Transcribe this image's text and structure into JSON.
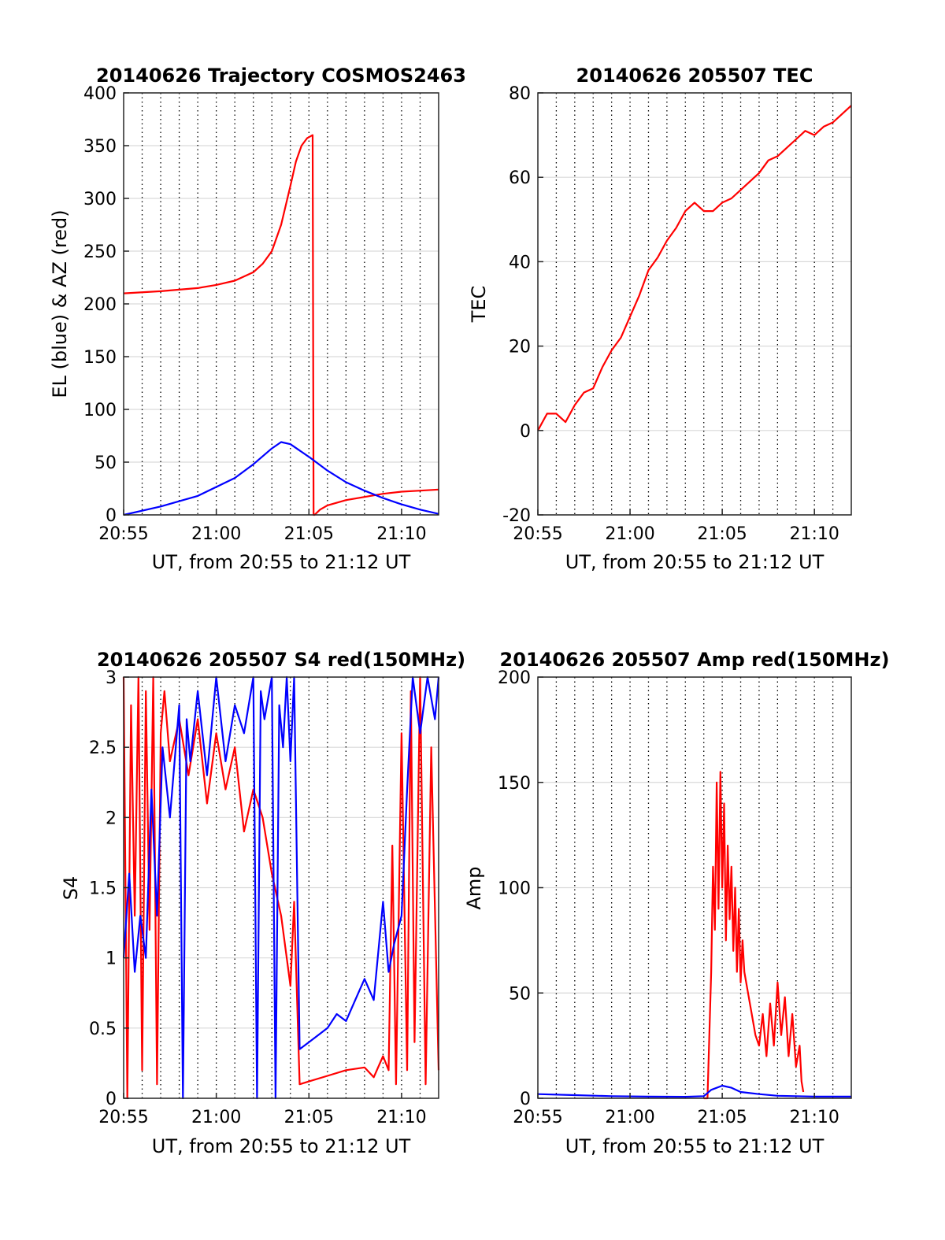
{
  "figure": {
    "background": "#ffffff",
    "colors": {
      "red": "#ff0000",
      "blue": "#0000ff",
      "grid_dotted": "#000000",
      "grid_solid": "#d9d9d9"
    }
  },
  "chart_data": [
    {
      "type": "line",
      "title": "20140626 Trajectory COSMOS2463",
      "xlabel": "UT, from 20:55 to 21:12 UT",
      "ylabel": "EL (blue) & AZ (red)",
      "x_unit": "minutes after 20:55 UT",
      "xlim": [
        0,
        17
      ],
      "ylim": [
        0,
        400
      ],
      "yticks": [
        0,
        50,
        100,
        150,
        200,
        250,
        300,
        350,
        400
      ],
      "xtick_labels": [
        "20:55",
        "21:00",
        "21:05",
        "21:10"
      ],
      "grid": "on",
      "series": [
        {
          "color": "#ff0000",
          "x": [
            0,
            2,
            4,
            5,
            6,
            7,
            7.5,
            8,
            8.5,
            9,
            9.3,
            9.6,
            9.9,
            10.2,
            10.25,
            10.3,
            10.6,
            11,
            12,
            13,
            14,
            15,
            16,
            17
          ],
          "y": [
            210,
            212,
            215,
            218,
            222,
            230,
            238,
            250,
            275,
            312,
            335,
            350,
            357,
            360,
            0,
            0,
            5,
            9,
            14,
            17,
            20,
            22,
            23,
            24
          ]
        },
        {
          "color": "#0000ff",
          "x": [
            0,
            2,
            4,
            6,
            7,
            8,
            8.5,
            9,
            10,
            11,
            12,
            13,
            14,
            15,
            16,
            17
          ],
          "y": [
            0,
            8,
            18,
            35,
            48,
            63,
            69,
            67,
            55,
            42,
            31,
            23,
            16,
            10,
            5,
            1
          ]
        }
      ]
    },
    {
      "type": "line",
      "title": "20140626 205507 TEC",
      "xlabel": "UT, from 20:55 to 21:12 UT",
      "ylabel": "TEC",
      "x_unit": "minutes after 20:55 UT",
      "xlim": [
        0,
        17
      ],
      "ylim": [
        -20,
        80
      ],
      "yticks": [
        -20,
        0,
        20,
        40,
        60,
        80
      ],
      "xtick_labels": [
        "20:55",
        "21:00",
        "21:05",
        "21:10"
      ],
      "grid": "on",
      "series": [
        {
          "color": "#ff0000",
          "x": [
            0,
            0.5,
            1,
            1.5,
            2,
            2.5,
            3,
            3.5,
            4,
            4.5,
            5,
            5.5,
            6,
            6.5,
            7,
            7.5,
            8,
            8.5,
            9,
            9.5,
            10,
            10.5,
            11,
            11.5,
            12,
            12.5,
            13,
            13.5,
            14,
            14.5,
            15,
            15.5,
            16,
            16.5,
            17
          ],
          "y": [
            0,
            4,
            4,
            2,
            6,
            9,
            10,
            15,
            19,
            22,
            27,
            32,
            38,
            41,
            45,
            48,
            52,
            54,
            52,
            52,
            54,
            55,
            57,
            59,
            61,
            64,
            65,
            67,
            69,
            71,
            70,
            72,
            73,
            75,
            77
          ]
        }
      ]
    },
    {
      "type": "line",
      "title": "20140626 205507 S4 red(150MHz)",
      "xlabel": "UT, from 20:55 to 21:12 UT",
      "ylabel": "S4",
      "x_unit": "minutes after 20:55 UT",
      "xlim": [
        0,
        17
      ],
      "ylim": [
        0,
        3
      ],
      "yticks": [
        0,
        0.5,
        1,
        1.5,
        2,
        2.5,
        3
      ],
      "ytick_labels": [
        "0",
        "0.5",
        "1",
        "1.5",
        "2",
        "2.5",
        "3"
      ],
      "xtick_labels": [
        "20:55",
        "21:00",
        "21:05",
        "21:10"
      ],
      "grid": "on",
      "series": [
        {
          "color": "#ff0000",
          "x": [
            0,
            0.2,
            0.4,
            0.6,
            0.8,
            1.0,
            1.2,
            1.4,
            1.6,
            1.8,
            2.0,
            2.2,
            2.5,
            3.0,
            3.5,
            4.0,
            4.5,
            5.0,
            5.5,
            6.0,
            6.5,
            7.0,
            7.5,
            8.0,
            8.5,
            8.8,
            9.0,
            9.2,
            9.5,
            10,
            11,
            12,
            13,
            13.5,
            14,
            14.3,
            14.5,
            14.7,
            15,
            15.3,
            15.5,
            15.7,
            16,
            16.3,
            16.6,
            17
          ],
          "y": [
            3,
            0,
            2.8,
            1.3,
            3,
            0.2,
            2.9,
            1.2,
            3,
            0.1,
            2.6,
            2.9,
            2.4,
            2.7,
            2.3,
            2.7,
            2.1,
            2.6,
            2.2,
            2.5,
            1.9,
            2.2,
            2.0,
            1.6,
            1.3,
            1.0,
            0.8,
            1.4,
            0.1,
            0.12,
            0.16,
            0.2,
            0.22,
            0.15,
            0.3,
            0.2,
            1.8,
            0.1,
            2.6,
            0.2,
            2.9,
            0.4,
            3,
            0.1,
            2.5,
            0.2
          ]
        },
        {
          "color": "#0000ff",
          "x": [
            0,
            0.3,
            0.6,
            0.9,
            1.2,
            1.5,
            1.8,
            2.1,
            2.5,
            3.0,
            3.2,
            3.4,
            3.6,
            4.0,
            4.5,
            5.0,
            5.5,
            6.0,
            6.5,
            7.0,
            7.2,
            7.4,
            7.6,
            8.0,
            8.2,
            8.4,
            8.6,
            8.8,
            9.0,
            9.2,
            9.5,
            10,
            10.5,
            11,
            11.5,
            12,
            12.5,
            13,
            13.5,
            14,
            14.3,
            14.6,
            15.0,
            15.3,
            15.6,
            16,
            16.4,
            16.8,
            17
          ],
          "y": [
            1.0,
            1.6,
            0.9,
            1.3,
            1.0,
            2.2,
            1.3,
            2.5,
            2.0,
            2.8,
            0,
            2.7,
            2.4,
            2.9,
            2.3,
            3,
            2.4,
            2.8,
            2.6,
            3,
            0,
            2.9,
            2.7,
            3,
            0,
            2.8,
            2.5,
            3,
            2.4,
            3,
            0.35,
            0.4,
            0.45,
            0.5,
            0.6,
            0.55,
            0.7,
            0.85,
            0.7,
            1.4,
            0.9,
            1.1,
            1.3,
            2.2,
            3,
            2.6,
            3,
            2.7,
            3
          ]
        }
      ]
    },
    {
      "type": "line",
      "title": "20140626 205507 Amp red(150MHz)",
      "xlabel": "UT, from 20:55 to 21:12 UT",
      "ylabel": "Amp",
      "x_unit": "minutes after 20:55 UT",
      "xlim": [
        0,
        17
      ],
      "ylim": [
        0,
        200
      ],
      "yticks": [
        0,
        50,
        100,
        150,
        200
      ],
      "xtick_labels": [
        "20:55",
        "21:00",
        "21:05",
        "21:10"
      ],
      "grid": "on",
      "series": [
        {
          "color": "#ff0000",
          "x": [
            9.0,
            9.2,
            9.4,
            9.5,
            9.6,
            9.7,
            9.8,
            9.9,
            10.0,
            10.1,
            10.2,
            10.3,
            10.4,
            10.5,
            10.6,
            10.7,
            10.8,
            10.9,
            11.0,
            11.1,
            11.2,
            11.4,
            11.6,
            11.8,
            12.0,
            12.2,
            12.4,
            12.6,
            12.8,
            13.0,
            13.2,
            13.4,
            13.6,
            13.8,
            14.0,
            14.2,
            14.3,
            14.4
          ],
          "y": [
            0,
            0,
            60,
            110,
            80,
            150,
            90,
            155,
            100,
            140,
            75,
            120,
            85,
            110,
            70,
            100,
            60,
            90,
            55,
            75,
            60,
            50,
            40,
            30,
            25,
            40,
            20,
            45,
            25,
            55,
            30,
            48,
            20,
            40,
            15,
            25,
            8,
            3
          ]
        },
        {
          "color": "#0000ff",
          "x": [
            0,
            2,
            4,
            6,
            8,
            9,
            9.4,
            10,
            10.5,
            11,
            12,
            13,
            14,
            15,
            16,
            17
          ],
          "y": [
            2,
            1.5,
            1,
            0.8,
            0.7,
            1,
            4,
            6,
            5,
            3,
            2,
            1.2,
            1,
            0.8,
            0.8,
            0.8
          ]
        }
      ]
    }
  ]
}
